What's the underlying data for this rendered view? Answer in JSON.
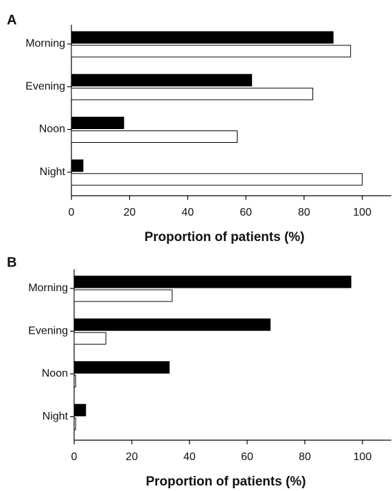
{
  "chart_data": [
    {
      "type": "bar",
      "label": "A",
      "orientation": "horizontal",
      "x_label": "Proportion of patients (%)",
      "categories": [
        "Morning",
        "Evening",
        "Noon",
        "Night"
      ],
      "series": [
        {
          "color": "#000000",
          "values": [
            90,
            62,
            18,
            4
          ]
        },
        {
          "color": "#ffffff",
          "values": [
            96,
            83,
            57,
            100
          ]
        }
      ],
      "xlim": [
        0,
        110
      ],
      "xticks": [
        0,
        20,
        40,
        60,
        80,
        100
      ]
    },
    {
      "type": "bar",
      "label": "B",
      "orientation": "horizontal",
      "x_label": "Proportion of patients (%)",
      "categories": [
        "Morning",
        "Evening",
        "Noon",
        "Night"
      ],
      "series": [
        {
          "color": "#000000",
          "values": [
            96,
            68,
            33,
            4
          ]
        },
        {
          "color": "#ffffff",
          "values": [
            34,
            11,
            0.5,
            0.5
          ]
        }
      ],
      "xlim": [
        0,
        110
      ],
      "xticks": [
        0,
        20,
        40,
        60,
        80,
        100
      ]
    }
  ]
}
